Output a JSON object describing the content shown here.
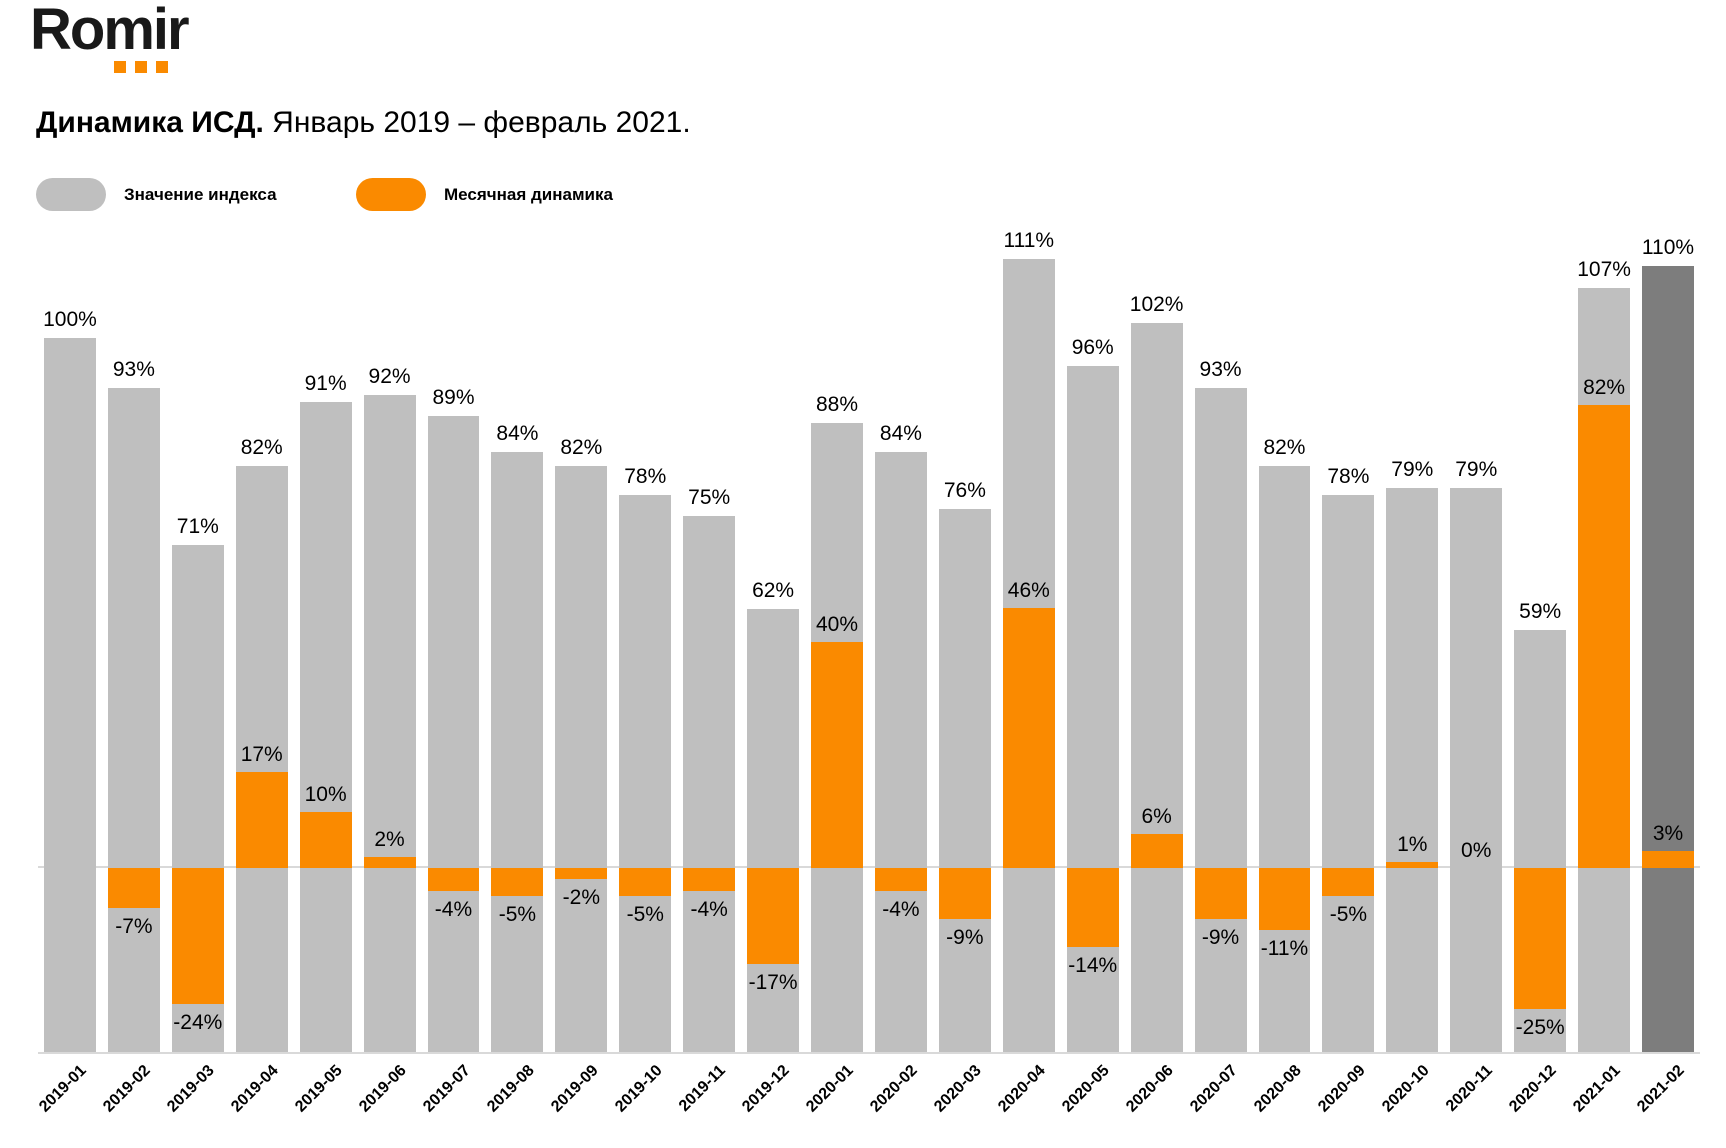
{
  "logo": {
    "text": "Romir",
    "dot_color": "#FA8A00",
    "dot_count": 3
  },
  "title": {
    "bold": "Динамика ИСД.",
    "regular": "Январь 2019 – февраль 2021."
  },
  "colors": {
    "index_bar": "#BFBFBF",
    "index_bar_highlight": "#7D7D7D",
    "dynamics_bar": "#FA8A00",
    "axis_line": "#D9D9D9",
    "text": "#000000"
  },
  "chart_data": {
    "type": "bar",
    "title": "Динамика ИСД. Январь 2019 – февраль 2021.",
    "categories": [
      "2019-01",
      "2019-02",
      "2019-03",
      "2019-04",
      "2019-05",
      "2019-06",
      "2019-07",
      "2019-08",
      "2019-09",
      "2019-10",
      "2019-11",
      "2019-12",
      "2020-01",
      "2020-02",
      "2020-03",
      "2020-04",
      "2020-05",
      "2020-06",
      "2020-07",
      "2020-08",
      "2020-09",
      "2020-10",
      "2020-11",
      "2020-12",
      "2021-01",
      "2021-02"
    ],
    "series": [
      {
        "name": "Значение индекса",
        "color": "#BFBFBF",
        "values": [
          100,
          93,
          71,
          82,
          91,
          92,
          89,
          84,
          82,
          78,
          75,
          62,
          88,
          84,
          76,
          111,
          96,
          102,
          93,
          82,
          78,
          79,
          79,
          59,
          107,
          110
        ]
      },
      {
        "name": "Месячная динамика",
        "color": "#FA8A00",
        "values": [
          null,
          -7,
          -24,
          17,
          10,
          2,
          -4,
          -5,
          -2,
          -5,
          -4,
          -17,
          40,
          -4,
          -9,
          46,
          -14,
          6,
          -9,
          -11,
          -5,
          1,
          0,
          -25,
          82,
          3
        ]
      }
    ],
    "highlight": {
      "category": "2021-02",
      "color": "#7D7D7D"
    },
    "value_suffix": "%",
    "ylim_index": [
      0,
      116
    ],
    "grid": false,
    "legend_position": "top-left",
    "xlabel": "",
    "ylabel": ""
  }
}
